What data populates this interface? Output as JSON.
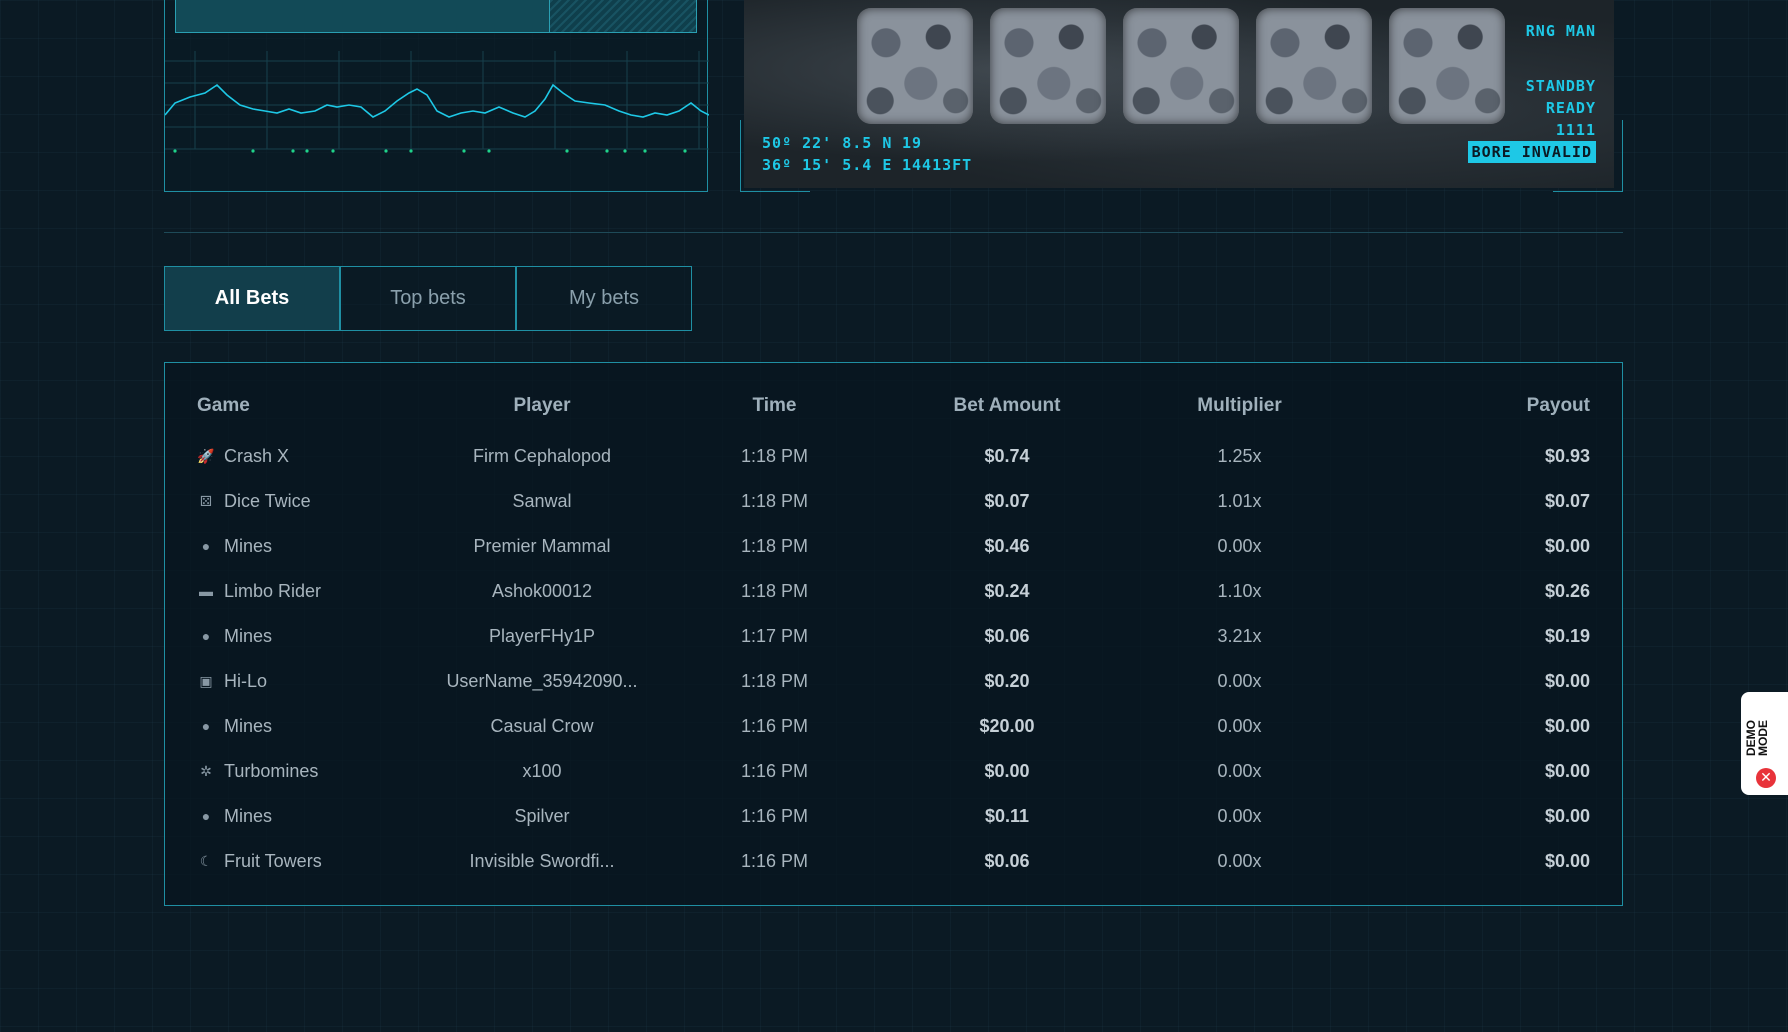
{
  "slot": {
    "coords": [
      {
        "lat": "50º 22' 8.5 N",
        "val": "19"
      },
      {
        "lat": "36º 15' 5.4 E",
        "val": "14413FT"
      }
    ],
    "status": {
      "line1": "RNG MAN",
      "line2": "STANDBY",
      "line3": "READY",
      "line4": "1111",
      "badge": "BORE INVALID"
    }
  },
  "tabs": [
    {
      "label": "All Bets",
      "active": true
    },
    {
      "label": "Top bets",
      "active": false
    },
    {
      "label": "My bets",
      "active": false
    }
  ],
  "bets": {
    "headers": {
      "game": "Game",
      "player": "Player",
      "time": "Time",
      "bet": "Bet Amount",
      "mult": "Multiplier",
      "payout": "Payout"
    },
    "rows": [
      {
        "icon": "rocket-icon",
        "glyph": "🚀",
        "game": "Crash X",
        "player": "Firm Cephalopod",
        "time": "1:18 PM",
        "bet": "$0.74",
        "mult": "1.25x",
        "payout": "$0.93"
      },
      {
        "icon": "dice-icon",
        "glyph": "⚄",
        "game": "Dice Twice",
        "player": "Sanwal",
        "time": "1:18 PM",
        "bet": "$0.07",
        "mult": "1.01x",
        "payout": "$0.07"
      },
      {
        "icon": "bomb-icon",
        "glyph": "●",
        "game": "Mines",
        "player": "Premier Mammal",
        "time": "1:18 PM",
        "bet": "$0.46",
        "mult": "0.00x",
        "payout": "$0.00"
      },
      {
        "icon": "limbo-icon",
        "glyph": "▬",
        "game": "Limbo Rider",
        "player": "Ashok00012",
        "time": "1:18 PM",
        "bet": "$0.24",
        "mult": "1.10x",
        "payout": "$0.26"
      },
      {
        "icon": "bomb-icon",
        "glyph": "●",
        "game": "Mines",
        "player": "PlayerFHy1P",
        "time": "1:17 PM",
        "bet": "$0.06",
        "mult": "3.21x",
        "payout": "$0.19"
      },
      {
        "icon": "cards-icon",
        "glyph": "▣",
        "game": "Hi-Lo",
        "player": "UserName_35942090...",
        "time": "1:18 PM",
        "bet": "$0.20",
        "mult": "0.00x",
        "payout": "$0.00"
      },
      {
        "icon": "bomb-icon",
        "glyph": "●",
        "game": "Mines",
        "player": "Casual Crow",
        "time": "1:16 PM",
        "bet": "$20.00",
        "mult": "0.00x",
        "payout": "$0.00"
      },
      {
        "icon": "turbo-icon",
        "glyph": "✲",
        "game": "Turbomines",
        "player": "x100",
        "time": "1:16 PM",
        "bet": "$0.00",
        "mult": "0.00x",
        "payout": "$0.00"
      },
      {
        "icon": "bomb-icon",
        "glyph": "●",
        "game": "Mines",
        "player": "Spilver",
        "time": "1:16 PM",
        "bet": "$0.11",
        "mult": "0.00x",
        "payout": "$0.00"
      },
      {
        "icon": "fruit-icon",
        "glyph": "☾",
        "game": "Fruit Towers",
        "player": "Invisible Swordfi...",
        "time": "1:16 PM",
        "bet": "$0.06",
        "mult": "0.00x",
        "payout": "$0.00"
      }
    ]
  },
  "demo": {
    "label": "DEMO MODE",
    "close": "✕"
  },
  "colors": {
    "accent": "#1ec8e6",
    "border": "#1f8fa3",
    "background": "#0b1a24"
  },
  "progress": {
    "fraction": 0.72
  }
}
